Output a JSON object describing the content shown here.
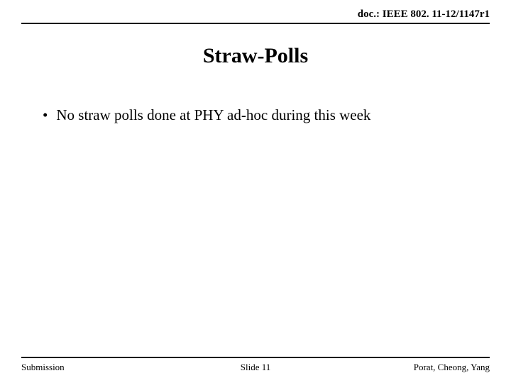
{
  "header": {
    "doc_id": "doc.: IEEE 802. 11-12/1147r1"
  },
  "title": "Straw-Polls",
  "bullets": {
    "item0": "No straw polls done at PHY ad-hoc during this week"
  },
  "footer": {
    "left": "Submission",
    "center": "Slide 11",
    "right": "Porat, Cheong, Yang"
  },
  "style": {
    "background_color": "#ffffff",
    "text_color": "#000000",
    "rule_color": "#000000",
    "title_fontsize": 30,
    "body_fontsize": 21,
    "header_fontsize": 15,
    "footer_fontsize": 13
  }
}
